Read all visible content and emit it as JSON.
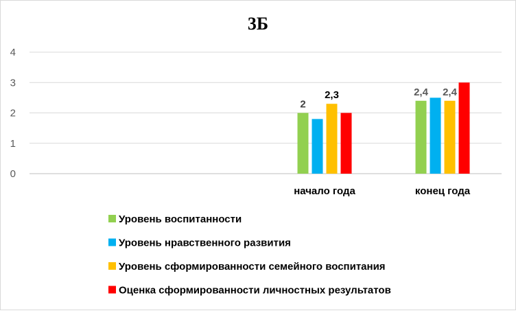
{
  "chart_data": {
    "type": "bar",
    "title": "3Б",
    "xlabel": "",
    "ylabel": "",
    "ylim": [
      0,
      4
    ],
    "yticks": [
      "0",
      "1",
      "2",
      "3",
      "4"
    ],
    "grid": true,
    "legend_position": "bottom",
    "categories": [
      "",
      "",
      "начало года",
      "конец года"
    ],
    "series": [
      {
        "name": "Уровень воспитанности",
        "color": "#92d050",
        "values": [
          null,
          null,
          2,
          2.4
        ]
      },
      {
        "name": "Уровень нравственного развития",
        "color": "#00b0f0",
        "values": [
          null,
          null,
          1.8,
          2.5
        ]
      },
      {
        "name": "Уровень сформированности семейного воспитания",
        "color": "#ffc000",
        "values": [
          null,
          null,
          2.3,
          2.4
        ]
      },
      {
        "name": "Оценка сформированности личностных результатов",
        "color": "#ff0000",
        "values": [
          null,
          null,
          2,
          3
        ]
      }
    ],
    "data_labels": [
      {
        "category": 2,
        "series": 0,
        "text": "2",
        "color": "#404040"
      },
      {
        "category": 2,
        "series": 2,
        "text": "2,3",
        "color": "#000000"
      },
      {
        "category": 3,
        "series": 0,
        "text": "2,4",
        "color": "#595959"
      },
      {
        "category": 3,
        "series": 2,
        "text": "2,4",
        "color": "#595959"
      }
    ]
  }
}
